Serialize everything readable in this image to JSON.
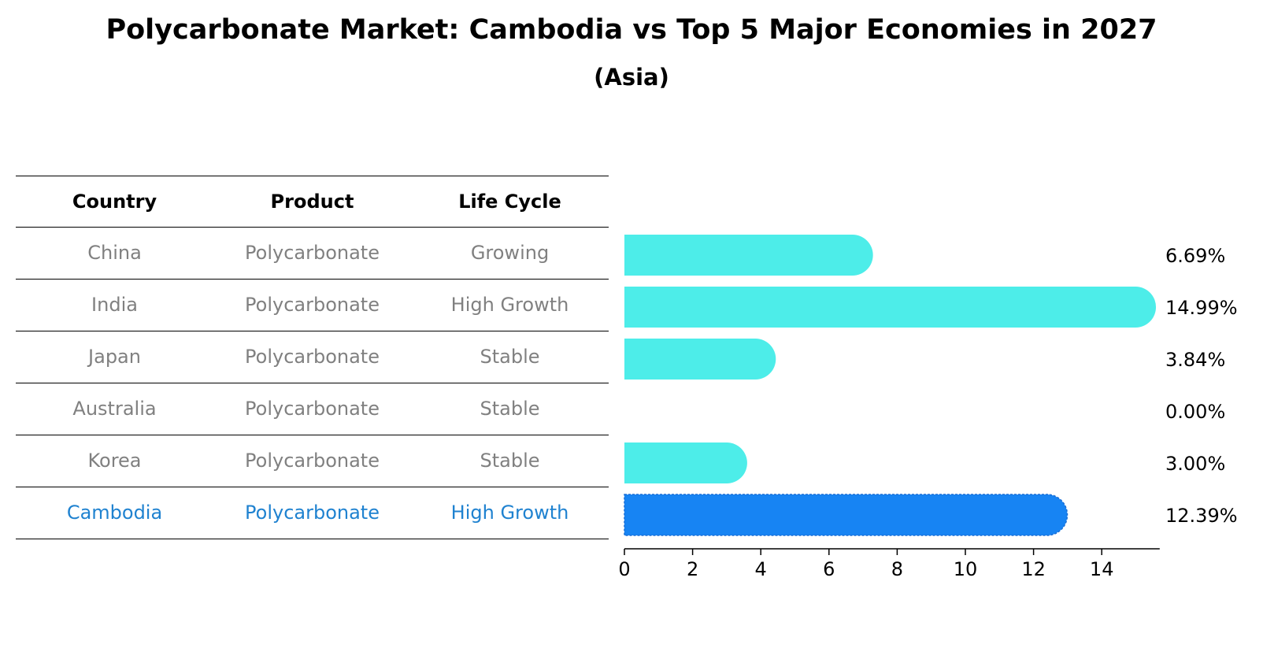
{
  "title": "Polycarbonate Market: Cambodia vs Top 5 Major Economies in 2027",
  "subtitle": "(Asia)",
  "table": {
    "headers": [
      "Country",
      "Product",
      "Life Cycle"
    ],
    "rows": [
      {
        "country": "China",
        "product": "Polycarbonate",
        "life_cycle": "Growing"
      },
      {
        "country": "India",
        "product": "Polycarbonate",
        "life_cycle": "High Growth"
      },
      {
        "country": "Japan",
        "product": "Polycarbonate",
        "life_cycle": "Stable"
      },
      {
        "country": "Australia",
        "product": "Polycarbonate",
        "life_cycle": "Stable"
      },
      {
        "country": "Korea",
        "product": "Polycarbonate",
        "life_cycle": "Stable"
      },
      {
        "country": "Cambodia",
        "product": "Polycarbonate",
        "life_cycle": "High Growth"
      }
    ]
  },
  "colors": {
    "bar": "#4dede9",
    "highlight_bar": "#1784f3",
    "highlight_text": "#1f82d0",
    "muted_text": "#808080"
  },
  "chart_data": {
    "type": "bar",
    "orientation": "horizontal",
    "title": "Polycarbonate Market: Cambodia vs Top 5 Major Economies in 2027",
    "subtitle": "(Asia)",
    "categories": [
      "China",
      "India",
      "Japan",
      "Australia",
      "Korea",
      "Cambodia"
    ],
    "values": [
      6.69,
      14.99,
      3.84,
      0.0,
      3.0,
      12.39
    ],
    "value_labels": [
      "6.69%",
      "14.99%",
      "3.84%",
      "0.00%",
      "3.00%",
      "12.39%"
    ],
    "highlight": "Cambodia",
    "xlim": [
      0,
      15.7
    ],
    "xticks": [
      0,
      2,
      4,
      6,
      8,
      10,
      12,
      14
    ],
    "xlabel": "",
    "ylabel": "",
    "grid": false
  }
}
